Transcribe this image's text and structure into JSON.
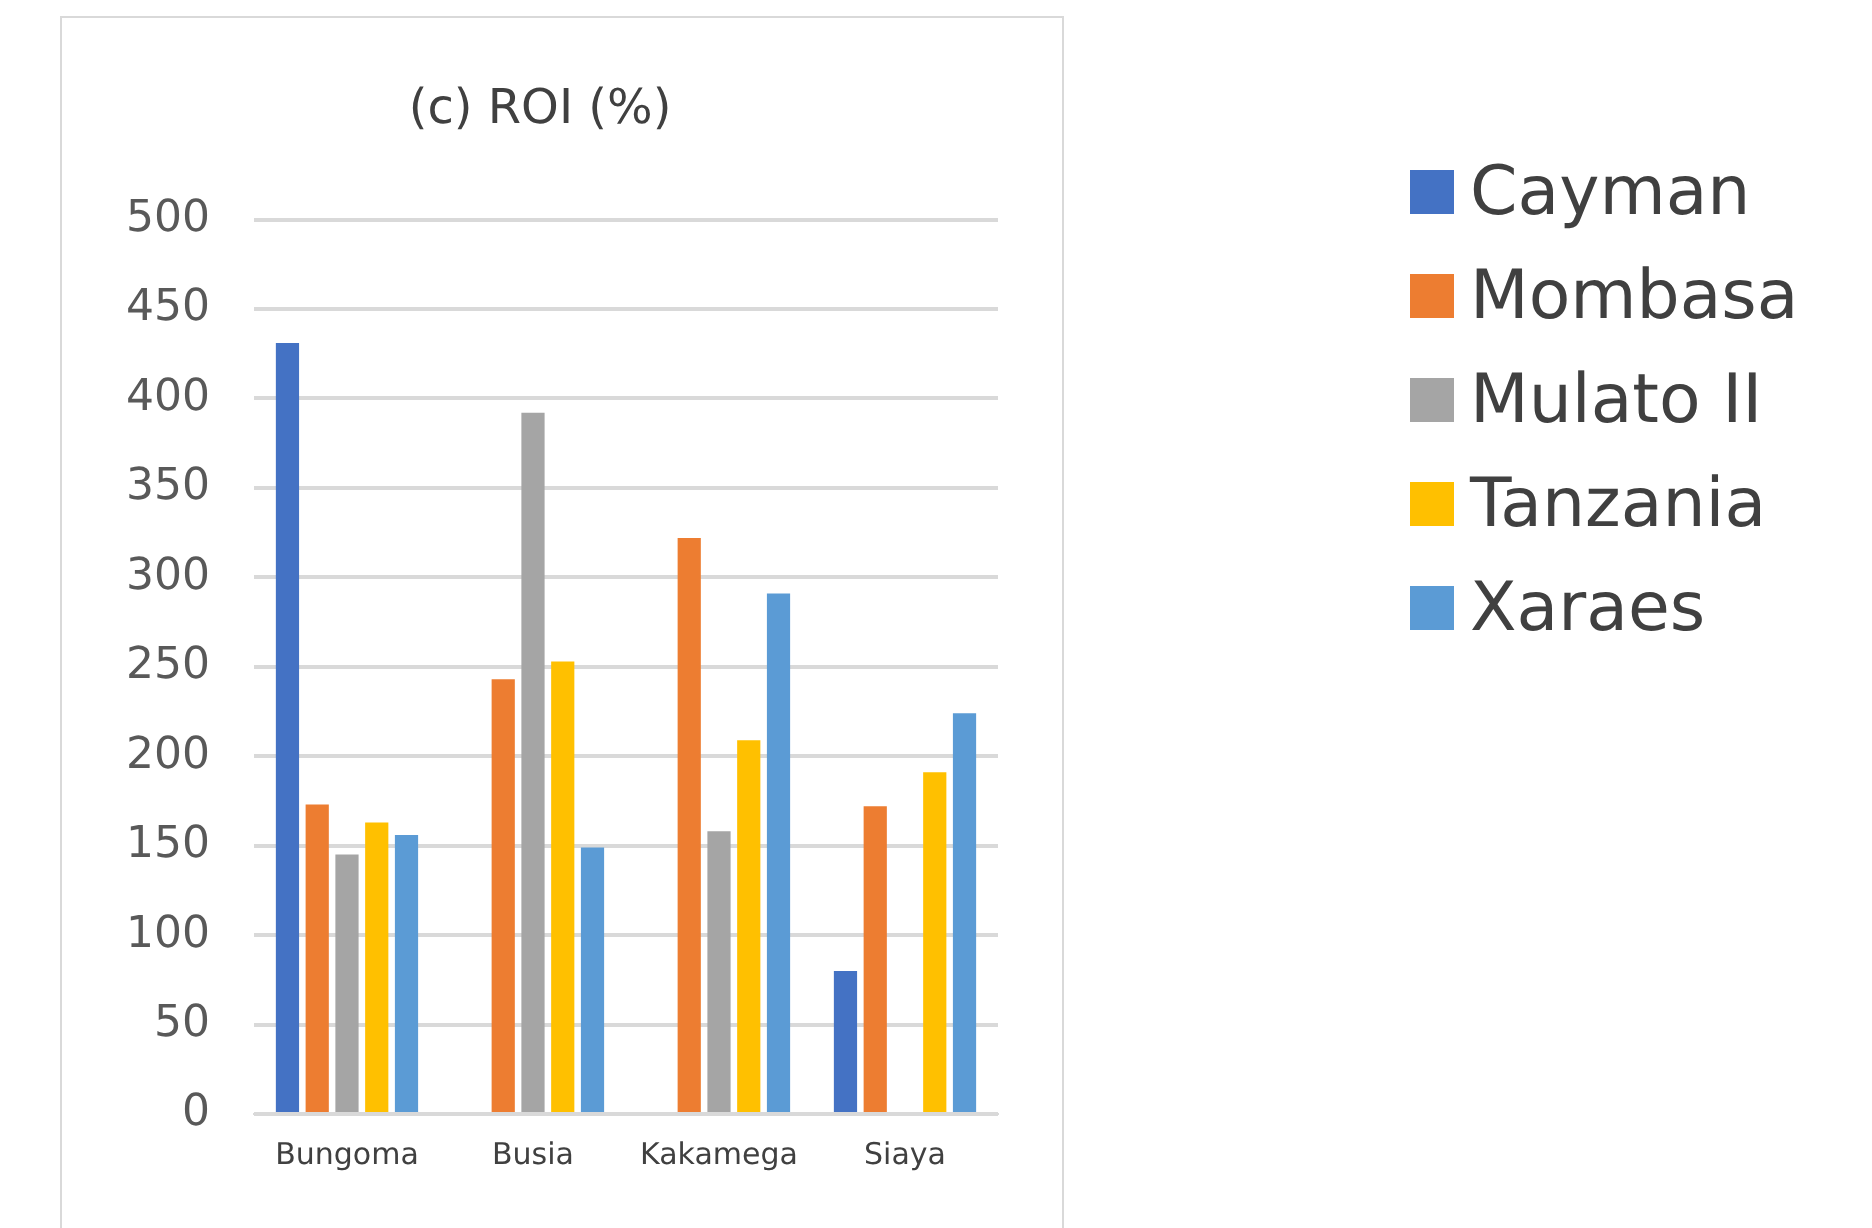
{
  "chart_data": {
    "type": "bar",
    "title": "(c) ROI (%)",
    "categories": [
      "Bungoma",
      "Busia",
      "Kakamega",
      "Siaya"
    ],
    "series": [
      {
        "name": "Cayman",
        "color": "#4472c4",
        "values": [
          431,
          null,
          null,
          80
        ]
      },
      {
        "name": "Mombasa",
        "color": "#ed7d31",
        "values": [
          173,
          243,
          322,
          172
        ]
      },
      {
        "name": "Mulato II",
        "color": "#a5a5a5",
        "values": [
          145,
          392,
          158,
          null
        ]
      },
      {
        "name": "Tanzania",
        "color": "#ffc000",
        "values": [
          163,
          253,
          209,
          191
        ]
      },
      {
        "name": "Xaraes",
        "color": "#5b9bd5",
        "values": [
          156,
          149,
          291,
          224
        ]
      }
    ],
    "ylim": [
      0,
      500
    ],
    "yticks": [
      0,
      50,
      100,
      150,
      200,
      250,
      300,
      350,
      400,
      450,
      500
    ],
    "grid": "y",
    "legend": "right"
  }
}
